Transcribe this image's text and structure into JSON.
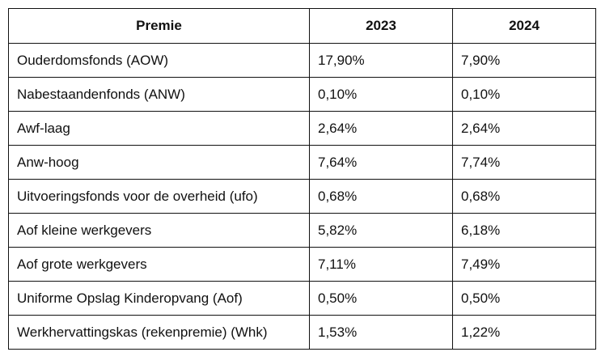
{
  "table": {
    "headers": [
      "Premie",
      "2023",
      "2024"
    ],
    "rows": [
      [
        "Ouderdomsfonds (AOW)",
        "17,90%",
        "7,90%"
      ],
      [
        "Nabestaandenfonds (ANW)",
        "0,10%",
        "0,10%"
      ],
      [
        "Awf-laag",
        "2,64%",
        "2,64%"
      ],
      [
        "Anw-hoog",
        "7,64%",
        "7,74%"
      ],
      [
        "Uitvoeringsfonds voor de overheid (ufo)",
        "0,68%",
        "0,68%"
      ],
      [
        "Aof kleine werkgevers",
        "5,82%",
        "6,18%"
      ],
      [
        "Aof grote werkgevers",
        "7,11%",
        "7,49%"
      ],
      [
        "Uniforme Opslag Kinderopvang (Aof)",
        "0,50%",
        "0,50%"
      ],
      [
        "Werkhervattingskas (rekenpremie) (Whk)",
        "1,53%",
        "1,22%"
      ]
    ]
  }
}
